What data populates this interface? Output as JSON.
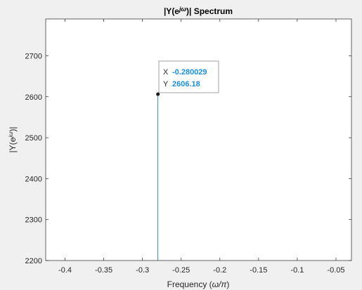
{
  "chart_data": {
    "type": "line",
    "title": "|Y(e^jω)| Spectrum",
    "title_parts": {
      "base": "|Y(e",
      "sup": "jω",
      "tail": ")| Spectrum"
    },
    "xlabel": "Frequency (ω/π)",
    "xlabel_parts": {
      "base": "Frequency (",
      "sym": "ω/π",
      "tail": ")"
    },
    "ylabel": "|Y(e^jω)|",
    "ylabel_parts": {
      "base": "|Y(e",
      "sup": "jω",
      "tail": ")|"
    },
    "xlim": [
      -0.425,
      -0.03
    ],
    "ylim": [
      2200,
      2790
    ],
    "xticks": [
      -0.4,
      -0.35,
      -0.3,
      -0.25,
      -0.2,
      -0.15,
      -0.1,
      -0.05
    ],
    "xtick_labels": [
      "-0.4",
      "-0.35",
      "-0.3",
      "-0.25",
      "-0.2",
      "-0.15",
      "-0.1",
      "-0.05"
    ],
    "yticks": [
      2200,
      2300,
      2400,
      2500,
      2600,
      2700
    ],
    "ytick_labels": [
      "2200",
      "2300",
      "2400",
      "2500",
      "2600",
      "2700"
    ],
    "grid": false,
    "series": [
      {
        "x": [
          -0.280029,
          -0.280029
        ],
        "y": [
          2200,
          2606.18
        ],
        "color": "#0072bd"
      }
    ],
    "datatip": {
      "x_key": "X",
      "x_value": "-0.280029",
      "y_key": "Y",
      "y_value": "2606.18",
      "point": {
        "x": -0.280029,
        "y": 2606.18
      }
    }
  }
}
